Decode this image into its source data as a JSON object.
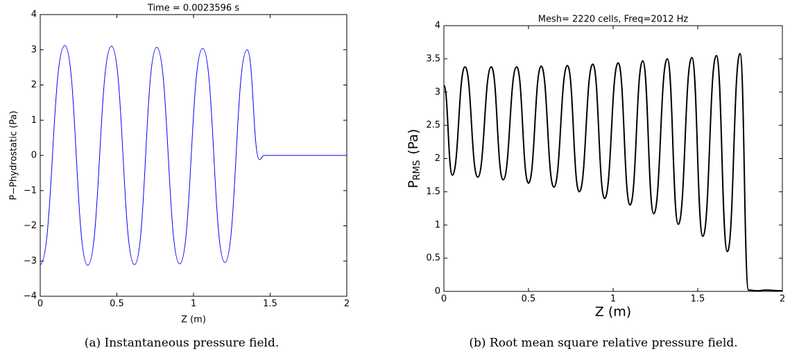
{
  "chart_data": [
    {
      "type": "line",
      "title": "Time = 0.0023596 s",
      "xlabel": "Z (m)",
      "ylabel": "P−Phydrostatic (Pa)",
      "caption": "(a) Instantaneous pressure field.",
      "xlim": [
        0,
        2
      ],
      "ylim": [
        -4,
        4
      ],
      "xticks": [
        0,
        0.5,
        1,
        1.5,
        2
      ],
      "yticks": [
        {
          "value": -4,
          "label": "−4"
        },
        {
          "value": -3,
          "label": "−3"
        },
        {
          "value": -2,
          "label": "−2"
        },
        {
          "value": -1,
          "label": "−1"
        },
        0,
        1,
        2,
        3,
        4
      ],
      "series": [
        {
          "color": "#0000ff",
          "x": [
            0,
            0.16,
            0.31,
            0.465,
            0.615,
            0.76,
            0.91,
            1.06,
            1.205,
            1.35,
            1.43,
            1.46,
            2
          ],
          "values": [
            -3.1,
            3.12,
            -3.12,
            3.1,
            -3.1,
            3.07,
            -3.08,
            3.04,
            -3.04,
            3.0,
            -0.12,
            0,
            0
          ]
        }
      ]
    },
    {
      "type": "line",
      "title": "Mesh= 2220 cells, Freq=2012 Hz",
      "xlabel": "Z (m)",
      "ylabel": "P",
      "ylabel_sub": "RMS",
      "ylabel_unit": "(Pa)",
      "caption": "(b) Root mean square relative pressure field.",
      "xlim": [
        0,
        2
      ],
      "ylim": [
        0,
        4
      ],
      "xticks": [
        0,
        0.5,
        1,
        1.5,
        2
      ],
      "yticks": [
        0,
        0.5,
        1,
        1.5,
        2,
        2.5,
        3,
        3.5,
        4
      ],
      "series": [
        {
          "color": "#000000",
          "x": [
            0,
            0.05,
            0.125,
            0.2,
            0.28,
            0.35,
            0.43,
            0.5,
            0.575,
            0.65,
            0.73,
            0.8,
            0.88,
            0.95,
            1.03,
            1.1,
            1.175,
            1.24,
            1.32,
            1.385,
            1.465,
            1.53,
            1.61,
            1.675,
            1.75,
            1.8,
            1.85,
            1.9,
            2
          ],
          "values": [
            3.1,
            1.75,
            3.38,
            1.72,
            3.38,
            1.68,
            3.38,
            1.63,
            3.39,
            1.57,
            3.4,
            1.5,
            3.42,
            1.4,
            3.44,
            1.3,
            3.47,
            1.17,
            3.5,
            1.01,
            3.52,
            0.83,
            3.55,
            0.6,
            3.58,
            0.02,
            0.01,
            0.02,
            0.01
          ]
        }
      ]
    }
  ]
}
